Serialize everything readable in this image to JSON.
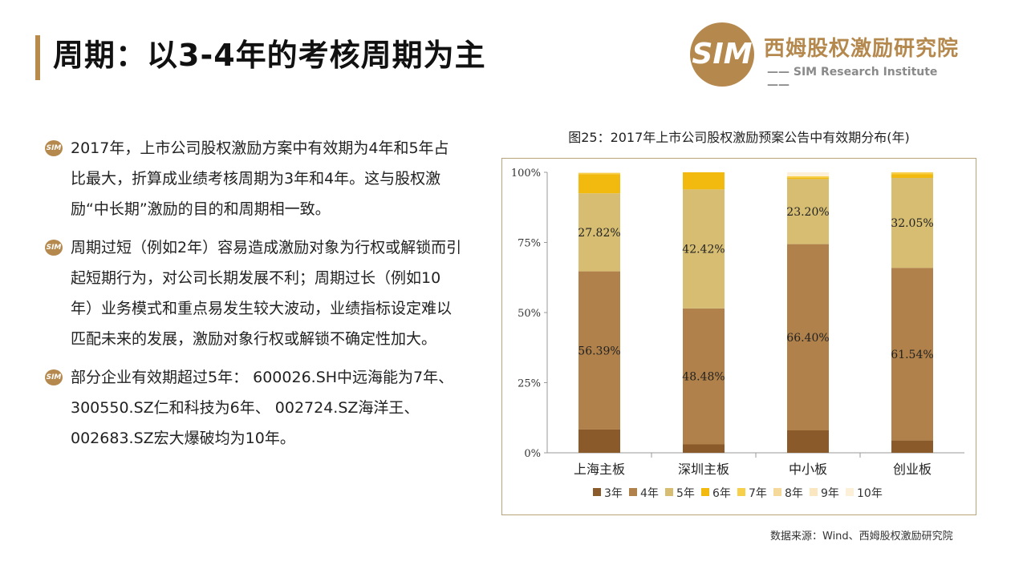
{
  "page": {
    "title": "周期：以3-4年的考核周期为主"
  },
  "logo": {
    "mark": "SIM",
    "cn": "西姆股权激励研究院",
    "en": "—— SIM Research Institute ——"
  },
  "bullets": [
    {
      "icon": "SIM",
      "text": "2017年，上市公司股权激励方案中有效期为4年和5年占比最大，折算成业绩考核周期为3年和4年。这与股权激励“中长期”激励的目的和周期相一致。"
    },
    {
      "icon": "SIM",
      "text": "周期过短（例如2年）容易造成激励对象为行权或解锁而引起短期行为，对公司长期发展不利；周期过长（例如10年）业务模式和重点易发生较大波动，业绩指标设定难以匹配未来的发展，激励对象行权或解锁不确定性加大。"
    },
    {
      "icon": "SIM",
      "text": "部分企业有效期超过5年： 600026.SH中远海能为7年、 300550.SZ仁和科技为6年、 002724.SZ海洋王、 002683.SZ宏大爆破均为10年。"
    }
  ],
  "source": "数据来源：Wind、西姆股权激励研究院",
  "chart_data": {
    "type": "bar",
    "stacked": true,
    "title": "图25：2017年上市公司股权激励预案公告中有效期分布(年)",
    "categories": [
      "上海主板",
      "深圳主板",
      "中小板",
      "创业板"
    ],
    "ylim": [
      0,
      100
    ],
    "yticks": [
      "0%",
      "25%",
      "50%",
      "75%",
      "100%"
    ],
    "legend_position": "bottom",
    "series": [
      {
        "name": "3年",
        "color": "#8b5a2b",
        "values": [
          8.3,
          3.0,
          8.0,
          4.4
        ]
      },
      {
        "name": "4年",
        "color": "#b0814a",
        "values": [
          56.39,
          48.48,
          66.4,
          61.54
        ]
      },
      {
        "name": "5年",
        "color": "#d6bd72",
        "values": [
          27.82,
          42.42,
          23.2,
          32.05
        ]
      },
      {
        "name": "6年",
        "color": "#f2b90f",
        "values": [
          6.8,
          6.1,
          0.5,
          1.3
        ]
      },
      {
        "name": "7年",
        "color": "#f7cf49",
        "values": [
          0.5,
          0,
          0.5,
          0.71
        ]
      },
      {
        "name": "8年",
        "color": "#f5d99b",
        "values": [
          0,
          0,
          0,
          0
        ]
      },
      {
        "name": "9年",
        "color": "#fae6bf",
        "values": [
          0,
          0,
          0,
          0
        ]
      },
      {
        "name": "10年",
        "color": "#fdf0d9",
        "values": [
          0.19,
          0,
          1.4,
          0
        ]
      }
    ],
    "data_labels": [
      {
        "series": 1,
        "category": 0,
        "text": "56.39%"
      },
      {
        "series": 1,
        "category": 1,
        "text": "48.48%"
      },
      {
        "series": 1,
        "category": 2,
        "text": "66.40%"
      },
      {
        "series": 1,
        "category": 3,
        "text": "61.54%"
      },
      {
        "series": 2,
        "category": 0,
        "text": "27.82%"
      },
      {
        "series": 2,
        "category": 1,
        "text": "42.42%"
      },
      {
        "series": 2,
        "category": 2,
        "text": "23.20%"
      },
      {
        "series": 2,
        "category": 3,
        "text": "32.05%"
      }
    ]
  }
}
